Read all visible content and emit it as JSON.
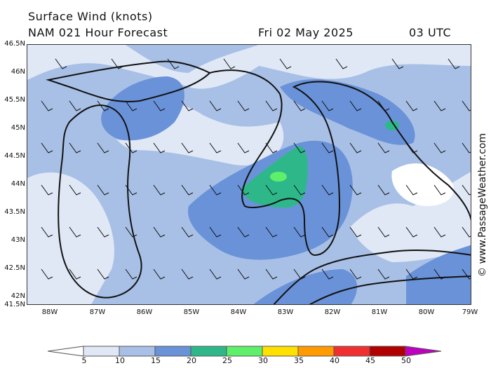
{
  "header": {
    "title": "Surface Wind (knots)",
    "model_line": "NAM 021 Hour Forecast",
    "date": "Fri 02 May 2025",
    "time": "03 UTC"
  },
  "axes": {
    "latitudes": [
      "46.5N",
      "46N",
      "45.5N",
      "45N",
      "44.5N",
      "44N",
      "43.5N",
      "43N",
      "42.5N",
      "42N",
      "41.5N"
    ],
    "longitudes": [
      "88W",
      "87W",
      "86W",
      "85W",
      "84W",
      "83W",
      "82W",
      "81W",
      "80W",
      "79W"
    ]
  },
  "legend": {
    "labels": [
      "5",
      "10",
      "15",
      "20",
      "25",
      "30",
      "35",
      "40",
      "45",
      "50"
    ],
    "colors": [
      "#ffffff",
      "#e0e8f6",
      "#a8c0e6",
      "#6a92d8",
      "#2eb88a",
      "#5ef06a",
      "#ffe000",
      "#ff9a00",
      "#f03030",
      "#b00000",
      "#c000c0"
    ]
  },
  "watermark": "© www.PassageWeather.com"
}
